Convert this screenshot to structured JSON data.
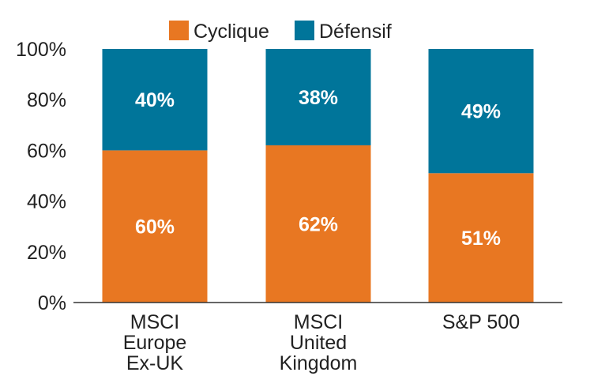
{
  "chart_data": {
    "type": "bar",
    "stacked": true,
    "title": "",
    "xlabel": "",
    "ylabel": "",
    "ylim": [
      0,
      100
    ],
    "y_ticks": [
      {
        "value": 0,
        "label": "0%"
      },
      {
        "value": 20,
        "label": "20%"
      },
      {
        "value": 40,
        "label": "40%"
      },
      {
        "value": 60,
        "label": "60%"
      },
      {
        "value": 80,
        "label": "80%"
      },
      {
        "value": 100,
        "label": "100%"
      }
    ],
    "categories": [
      {
        "name": "MSCI Europe Ex-UK",
        "lines": [
          "MSCI",
          "Europe",
          "Ex-UK"
        ]
      },
      {
        "name": "MSCI United Kingdom",
        "lines": [
          "MSCI",
          "United",
          "Kingdom"
        ]
      },
      {
        "name": "S&P 500",
        "lines": [
          "S&P 500"
        ]
      }
    ],
    "series": [
      {
        "name": "Cyclique",
        "color": "#e87722",
        "values": [
          60,
          62,
          51
        ],
        "labels": [
          "60%",
          "62%",
          "51%"
        ]
      },
      {
        "name": "Défensif",
        "color": "#00759a",
        "values": [
          40,
          38,
          49
        ],
        "labels": [
          "40%",
          "38%",
          "49%"
        ]
      }
    ],
    "legend": {
      "position": "top-center",
      "entries": [
        "Cyclique",
        "Défensif"
      ]
    },
    "grid": false
  }
}
